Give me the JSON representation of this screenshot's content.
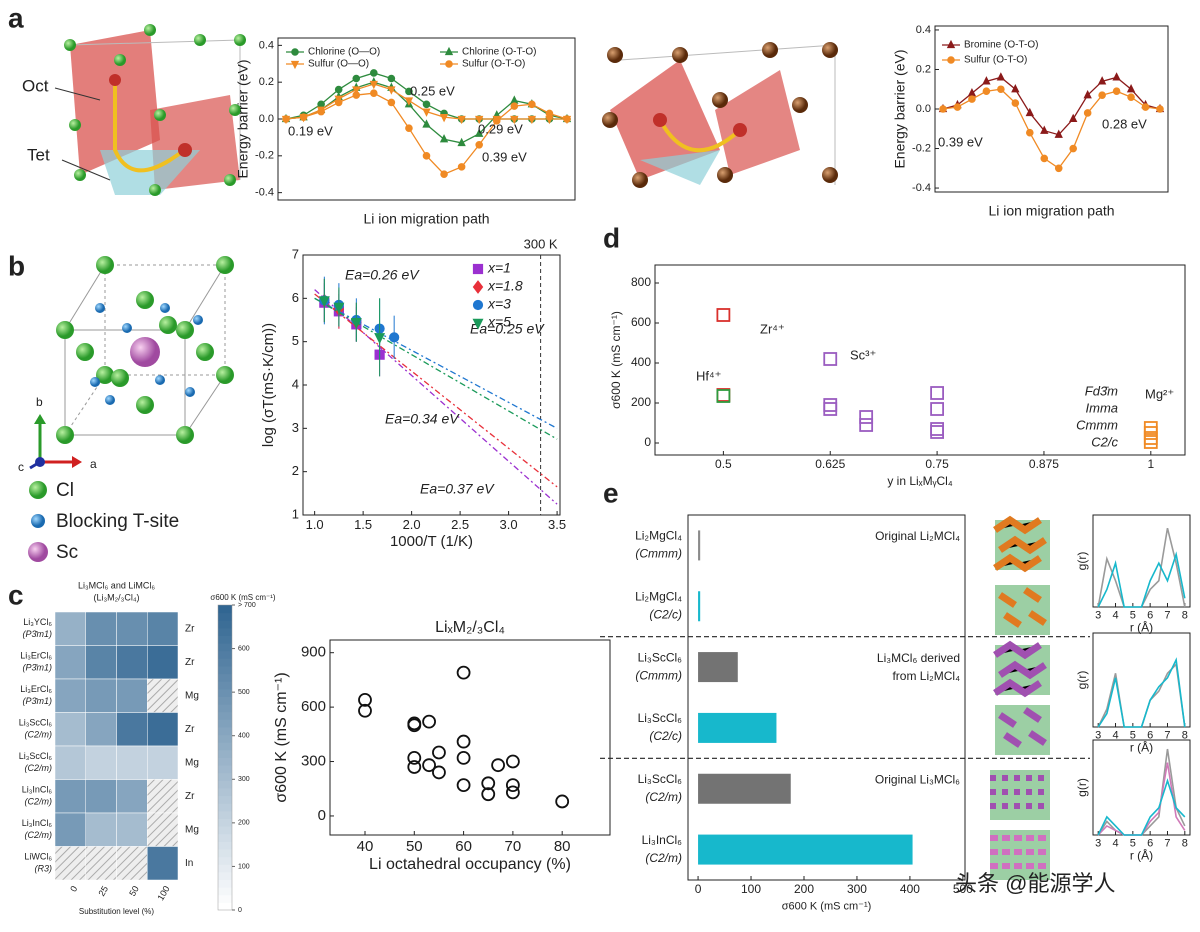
{
  "panel_labels": [
    "a",
    "b",
    "c",
    "d",
    "e"
  ],
  "structures": {
    "oct": "Oct",
    "tet": "Tet",
    "legend": [
      "Cl",
      "Blocking T-site",
      "Sc"
    ],
    "axes": [
      "a",
      "b",
      "c"
    ]
  },
  "watermark": "头条 @能源学人",
  "chart_data": [
    {
      "type": "line",
      "ylabel": "Energy barrier (eV)",
      "xlabel": "Li ion migration path",
      "categories": [
        null,
        null,
        null,
        null,
        null,
        null,
        null,
        null,
        null,
        null,
        null,
        null,
        null,
        null,
        null,
        null,
        null
      ],
      "ylim": [
        -0.44,
        0.44
      ],
      "yticks": [
        -0.4,
        -0.2,
        {
          "value": 0,
          "label": "0.0"
        },
        0.2,
        0.4
      ],
      "series": [
        {
          "name": "Chlorine (O—O)",
          "color": "#2e8b3e",
          "marker": "circle",
          "values": [
            0,
            0.02,
            0.08,
            0.16,
            0.22,
            0.25,
            0.22,
            0.15,
            0.08,
            0.03,
            0,
            0,
            0,
            0,
            0,
            0,
            0
          ]
        },
        {
          "name": "Chlorine (O-T-O)",
          "color": "#2e8b3e",
          "marker": "triangle",
          "values": [
            0,
            0.01,
            0.05,
            0.12,
            0.17,
            0.2,
            0.17,
            0.08,
            -0.03,
            -0.11,
            -0.13,
            -0.08,
            0.02,
            0.1,
            0.08,
            0.02,
            0
          ]
        },
        {
          "name": "Sulfur (O—O)",
          "color": "#f08a24",
          "marker": "triangle-down",
          "values": [
            0,
            0.01,
            0.05,
            0.11,
            0.16,
            0.19,
            0.16,
            0.1,
            0.04,
            0.01,
            0,
            0,
            0,
            0,
            0,
            0,
            0
          ]
        },
        {
          "name": "Sulfur (O-T-O)",
          "color": "#f08a24",
          "marker": "circle",
          "values": [
            0,
            0.01,
            0.04,
            0.09,
            0.13,
            0.14,
            0.09,
            -0.05,
            -0.2,
            -0.3,
            -0.26,
            -0.14,
            -0.01,
            0.07,
            0.08,
            0.03,
            0
          ]
        }
      ],
      "annotations": [
        {
          "text": "0.25 eV",
          "color": "#2e8b3e"
        },
        {
          "text": "0.29 eV",
          "color": "#2e8b3e"
        },
        {
          "text": "0.19 eV",
          "color": "#f08a24"
        },
        {
          "text": "0.39 eV",
          "color": "#f08a24"
        }
      ]
    },
    {
      "type": "line",
      "ylabel": "Energy barrier (eV)",
      "xlabel": "Li ion migration path",
      "categories": [
        null,
        null,
        null,
        null,
        null,
        null,
        null,
        null,
        null,
        null,
        null,
        null,
        null,
        null,
        null,
        null
      ],
      "ylim": [
        -0.42,
        0.42
      ],
      "yticks": [
        -0.4,
        -0.2,
        {
          "value": 0,
          "label": "0.0"
        },
        0.2,
        0.4
      ],
      "series": [
        {
          "name": "Bromine (O-T-O)",
          "color": "#8b1a1a",
          "marker": "triangle",
          "values": [
            0,
            0.02,
            0.08,
            0.14,
            0.16,
            0.1,
            -0.02,
            -0.11,
            -0.13,
            -0.05,
            0.07,
            0.14,
            0.16,
            0.1,
            0.02,
            0
          ]
        },
        {
          "name": "Sulfur (O-T-O)",
          "color": "#f08a24",
          "marker": "circle",
          "values": [
            0,
            0.01,
            0.05,
            0.09,
            0.1,
            0.03,
            -0.12,
            -0.25,
            -0.3,
            -0.2,
            -0.02,
            0.07,
            0.09,
            0.06,
            0.01,
            0
          ]
        }
      ],
      "annotations": [
        {
          "text": "0.39 eV",
          "color": "#f08a24"
        },
        {
          "text": "0.28 eV",
          "color": "#8b1a1a"
        }
      ]
    },
    {
      "type": "scatter",
      "ylabel": "log (σT(mS·K/cm))",
      "xlabel": "1000/T (1/K)",
      "xlim": [
        0.88,
        3.53
      ],
      "xticks": [
        {
          "value": 1,
          "label": "1.0"
        },
        1.5,
        {
          "value": 2,
          "label": "2.0"
        },
        2.5,
        {
          "value": 3,
          "label": "3.0"
        },
        3.5
      ],
      "ylim": [
        1,
        7
      ],
      "yticks": [
        1,
        2,
        3,
        4,
        5,
        6,
        7
      ],
      "vline": {
        "value": 3.33,
        "label": "300 K"
      },
      "series": [
        {
          "name": "x=1",
          "color": "#9b30d0",
          "marker": "square",
          "x": [
            1.1,
            1.25,
            1.43,
            1.67
          ],
          "values": [
            5.9,
            5.7,
            5.4,
            4.7
          ],
          "errors": [
            0.45,
            0.4,
            0.4,
            0.5
          ],
          "fit_x": [
            1,
            3.5
          ],
          "fit_y": [
            6.2,
            1.25
          ],
          "fit_label": "Ea=0.37 eV"
        },
        {
          "name": "x=1.8",
          "color": "#e8303a",
          "marker": "diamond",
          "x": [
            1.1,
            1.25,
            1.43
          ],
          "values": [
            5.95,
            5.75,
            5.45
          ],
          "errors": [
            0.5,
            0.45,
            0.45
          ],
          "fit_x": [
            1,
            3.5
          ],
          "fit_y": [
            6.1,
            1.65
          ],
          "fit_label": "Ea=0.34 eV"
        },
        {
          "name": "x=3",
          "color": "#1f77d0",
          "marker": "circle",
          "x": [
            1.1,
            1.25,
            1.43,
            1.67,
            1.82
          ],
          "values": [
            5.95,
            5.85,
            5.5,
            5.3,
            5.1
          ],
          "errors": [
            0.55,
            0.5,
            0.5,
            0.7,
            0.5
          ],
          "fit_x": [
            1,
            3.5
          ],
          "fit_y": [
            6,
            3
          ],
          "fit_label": "Ea=0.25 eV"
        },
        {
          "name": "x=5",
          "color": "#1a9a5a",
          "marker": "triangle-down",
          "x": [
            1.1,
            1.25,
            1.43,
            1.67
          ],
          "values": [
            5.95,
            5.8,
            5.45,
            5.1
          ],
          "errors": [
            0.5,
            0.45,
            0.45,
            0.9
          ],
          "fit_x": [
            1,
            3.5
          ],
          "fit_y": [
            6,
            2.75
          ],
          "fit_label": "Ea=0.26 eV"
        }
      ]
    },
    {
      "type": "heatmap",
      "title": "Li₃MCl₆ and LiMCl₆",
      "subtitle": "(Li₃M₂/₃Cl₄)",
      "xlabel": "Substitution level (%)",
      "categories": [
        0,
        25,
        50,
        100
      ],
      "rows": [
        "Li₃YCl₆",
        "Li₃ErCl₆",
        "Li₃ErCl₆",
        "Li₃ScCl₆",
        "Li₃ScCl₆",
        "Li₃InCl₆",
        "Li₃InCl₆",
        "LiWCl₆"
      ],
      "row_groups": [
        "(P3̄m1)",
        "(P3̄m1)",
        "(P3̄m1)",
        "(C2/m)",
        "(C2/m)",
        "(C2/m)",
        "(C2/m)",
        "(R3)"
      ],
      "dopants": [
        "Zr",
        "Zr",
        "Mg",
        "Zr",
        "Mg",
        "Zr",
        "Mg",
        "In"
      ],
      "values": [
        [
          350,
          500,
          500,
          550
        ],
        [
          400,
          550,
          600,
          650
        ],
        [
          400,
          450,
          450,
          null
        ],
        [
          300,
          400,
          600,
          650
        ],
        [
          250,
          200,
          200,
          200
        ],
        [
          450,
          450,
          400,
          null
        ],
        [
          450,
          300,
          300,
          null
        ],
        [
          null,
          null,
          null,
          600
        ]
      ],
      "colorbar": {
        "label": "σ600 K (mS cm⁻¹)",
        "lim": [
          0,
          700
        ],
        "ticks": [
          0,
          100,
          200,
          300,
          400,
          500,
          600,
          {
            "value": 700,
            "label": "> 700"
          }
        ],
        "colors": [
          "#ffffff",
          "#2c628f"
        ]
      }
    },
    {
      "type": "scatter",
      "title": "LiₓM₂/₃Cl₄",
      "ylabel": "σ600 K (mS cm⁻¹)",
      "xlabel": "Li octahedral occupancy (%)",
      "xlim": [
        32.9,
        89.7
      ],
      "xticks": [
        40,
        50,
        60,
        70,
        80
      ],
      "ylim": [
        -105,
        970
      ],
      "yticks": [
        0,
        300,
        600,
        900
      ],
      "series": [
        {
          "color": "#111111",
          "marker": "open-circle",
          "x": [
            40,
            40,
            50,
            50,
            50,
            50,
            53,
            53,
            55,
            55,
            60,
            60,
            60,
            60,
            65,
            65,
            67,
            70,
            70,
            70,
            80
          ],
          "values": [
            640,
            580,
            510,
            500,
            320,
            270,
            520,
            280,
            350,
            240,
            790,
            410,
            320,
            170,
            180,
            120,
            280,
            300,
            170,
            130,
            80
          ]
        }
      ]
    },
    {
      "type": "scatter",
      "ylabel": "σ600 K (mS cm⁻¹)",
      "xlabel": "y in LiₓMᵧCl₄",
      "xlim": [
        0.42,
        1.04
      ],
      "xticks": [
        0.5,
        0.625,
        0.75,
        0.875,
        1
      ],
      "ylim": [
        -60,
        890
      ],
      "yticks": [
        0,
        200,
        400,
        600,
        800
      ],
      "series": [
        {
          "name": "Zr⁴⁺",
          "color": "#d9302c",
          "marker": "open-square",
          "x": [
            0.5,
            0.5
          ],
          "values": [
            640,
            240
          ]
        },
        {
          "name": "Hf⁴⁺",
          "color": "#2e9b3e",
          "marker": "open-square",
          "x": [
            0.5
          ],
          "values": [
            235
          ]
        },
        {
          "name": "Sc³⁺",
          "color": "#9a5cc0",
          "marker": "open-square",
          "x": [
            0.625,
            0.625,
            0.625,
            0.667,
            0.667,
            0.75,
            0.75,
            0.75,
            0.75
          ],
          "values": [
            420,
            190,
            170,
            130,
            90,
            250,
            170,
            70,
            55
          ]
        },
        {
          "name": "Mg²⁺",
          "color": "#f08a24",
          "marker": "open-square",
          "x": [
            1,
            1,
            1,
            1
          ],
          "values": [
            75,
            50,
            25,
            5
          ]
        }
      ],
      "phase_labels": [
        "Fd3̄m",
        "Imma",
        "Cmmm",
        "C2/c"
      ]
    },
    {
      "type": "hbar",
      "xlabel": "σ600 K (mS cm⁻¹)",
      "categories": [
        "Li₂MgCl₄",
        "Li₂MgCl₄",
        "Li₃ScCl₆",
        "Li₃ScCl₆",
        "Li₃ScCl₆",
        "Li₃InCl₆"
      ],
      "space_groups": [
        "(Cmmm)",
        "(C2/c)",
        "(Cmmm)",
        "(C2/c)",
        "(C2/m)",
        "(C2/m)"
      ],
      "values": [
        4,
        4,
        75,
        148,
        175,
        405
      ],
      "colors": [
        "#8a8a8a",
        "#17b8cc",
        "#737373",
        "#17b8cc",
        "#737373",
        "#17b8cc"
      ],
      "xlim": [
        -19,
        504
      ],
      "xticks": [
        0,
        100,
        200,
        300,
        400,
        500
      ],
      "sections": [
        [
          "Original Li₂MCl₄"
        ],
        [
          "Li₃MCl₆ derived",
          "from Li₂MCl₄"
        ],
        [
          "Original Li₃MCl₆"
        ]
      ]
    },
    {
      "type": "line",
      "ylabel": "g(r)",
      "xlabel": "r (Å)",
      "x": [
        3,
        3.5,
        4,
        4.5,
        5,
        5.5,
        6,
        6.5,
        7,
        7.5,
        8
      ],
      "xlim": [
        2.7,
        8.3
      ],
      "xticks": [
        3,
        4,
        5,
        6,
        7,
        8
      ],
      "ylim": [
        0,
        1.05
      ],
      "series": [
        {
          "color": "#9a9a9a",
          "values": [
            0,
            0.55,
            0.3,
            0,
            0,
            0,
            0.2,
            0.3,
            0.9,
            0.5,
            0
          ]
        },
        {
          "color": "#17b8cc",
          "values": [
            0,
            0.2,
            0.5,
            0,
            0,
            0,
            0.3,
            0.5,
            0.3,
            0.6,
            0.1
          ]
        }
      ]
    },
    {
      "type": "line",
      "ylabel": "g(r)",
      "xlabel": "r (Å)",
      "x": [
        3,
        3.5,
        4,
        4.5,
        5,
        5.5,
        6,
        6.5,
        7,
        7.5,
        8
      ],
      "xlim": [
        2.7,
        8.3
      ],
      "xticks": [
        3,
        4,
        5,
        6,
        7,
        8
      ],
      "ylim": [
        0,
        1.05
      ],
      "series": [
        {
          "color": "#9a9a9a",
          "values": [
            0,
            0.2,
            0.6,
            0,
            0,
            0,
            0.3,
            0.4,
            0.6,
            0.7,
            0
          ]
        },
        {
          "color": "#17b8cc",
          "values": [
            0,
            0.15,
            0.55,
            0,
            0,
            0,
            0.3,
            0.45,
            0.55,
            0.75,
            0
          ]
        }
      ]
    },
    {
      "type": "line",
      "ylabel": "g(r)",
      "xlabel": "r (Å)",
      "x": [
        3,
        3.5,
        4,
        4.5,
        5,
        5.5,
        6,
        6.5,
        7,
        7.5,
        8
      ],
      "xlim": [
        2.7,
        8.3
      ],
      "xticks": [
        3,
        4,
        5,
        6,
        7,
        8
      ],
      "ylim": [
        0,
        1.05
      ],
      "series": [
        {
          "color": "#9a9a9a",
          "values": [
            0,
            0.15,
            0.05,
            0,
            0,
            0,
            0.1,
            0.2,
            0.95,
            0.3,
            0.1
          ]
        },
        {
          "color": "#d07ab8",
          "values": [
            0,
            0.1,
            0.05,
            0,
            0,
            0,
            0.15,
            0.25,
            0.8,
            0.2,
            0.05
          ]
        },
        {
          "color": "#17b8cc",
          "values": [
            0,
            0.2,
            0.1,
            0,
            0,
            0,
            0.2,
            0.3,
            0.6,
            0.3,
            0.2
          ]
        }
      ]
    }
  ]
}
